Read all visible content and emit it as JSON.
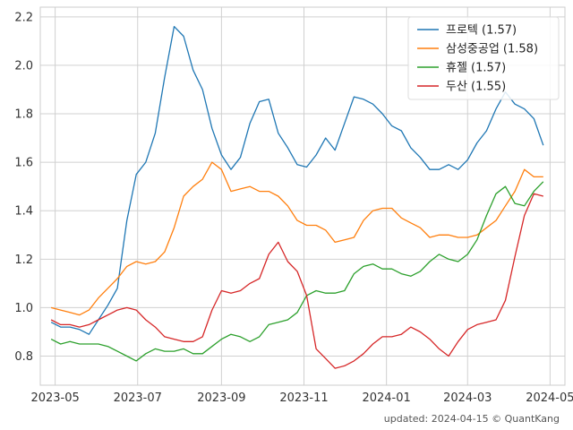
{
  "chart_data": {
    "type": "line",
    "title": "",
    "xlabel": "",
    "ylabel": "",
    "ylim": [
      0.68,
      2.24
    ],
    "xlim": [
      "2023-04-20",
      "2024-05-12"
    ],
    "grid": true,
    "legend_position": "top-right",
    "x_ticks": [
      "2023-05",
      "2023-07",
      "2023-09",
      "2023-11",
      "2024-01",
      "2024-03",
      "2024-05"
    ],
    "y_ticks": [
      "0.8",
      "1.0",
      "1.2",
      "1.4",
      "1.6",
      "1.8",
      "2.0",
      "2.2"
    ],
    "footer": "updated: 2024-04-15 © QuantKang",
    "series": [
      {
        "name": "프로텍 (1.57)",
        "color": "#1f77b4",
        "points": [
          [
            "2023-04-28",
            0.94
          ],
          [
            "2023-05-05",
            0.92
          ],
          [
            "2023-05-12",
            0.92
          ],
          [
            "2023-05-19",
            0.91
          ],
          [
            "2023-05-26",
            0.89
          ],
          [
            "2023-06-02",
            0.95
          ],
          [
            "2023-06-09",
            1.01
          ],
          [
            "2023-06-16",
            1.08
          ],
          [
            "2023-06-23",
            1.36
          ],
          [
            "2023-06-30",
            1.55
          ],
          [
            "2023-07-07",
            1.6
          ],
          [
            "2023-07-14",
            1.72
          ],
          [
            "2023-07-21",
            1.95
          ],
          [
            "2023-07-28",
            2.16
          ],
          [
            "2023-08-04",
            2.12
          ],
          [
            "2023-08-11",
            1.98
          ],
          [
            "2023-08-18",
            1.9
          ],
          [
            "2023-08-25",
            1.74
          ],
          [
            "2023-09-01",
            1.63
          ],
          [
            "2023-09-08",
            1.57
          ],
          [
            "2023-09-15",
            1.62
          ],
          [
            "2023-09-22",
            1.76
          ],
          [
            "2023-09-29",
            1.85
          ],
          [
            "2023-10-06",
            1.86
          ],
          [
            "2023-10-13",
            1.72
          ],
          [
            "2023-10-20",
            1.66
          ],
          [
            "2023-10-27",
            1.59
          ],
          [
            "2023-11-03",
            1.58
          ],
          [
            "2023-11-10",
            1.63
          ],
          [
            "2023-11-17",
            1.7
          ],
          [
            "2023-11-24",
            1.65
          ],
          [
            "2023-12-01",
            1.76
          ],
          [
            "2023-12-08",
            1.87
          ],
          [
            "2023-12-15",
            1.86
          ],
          [
            "2023-12-22",
            1.84
          ],
          [
            "2023-12-29",
            1.8
          ],
          [
            "2024-01-05",
            1.75
          ],
          [
            "2024-01-12",
            1.73
          ],
          [
            "2024-01-19",
            1.66
          ],
          [
            "2024-01-26",
            1.62
          ],
          [
            "2024-02-02",
            1.57
          ],
          [
            "2024-02-09",
            1.57
          ],
          [
            "2024-02-16",
            1.59
          ],
          [
            "2024-02-23",
            1.57
          ],
          [
            "2024-03-01",
            1.61
          ],
          [
            "2024-03-08",
            1.68
          ],
          [
            "2024-03-15",
            1.73
          ],
          [
            "2024-03-22",
            1.82
          ],
          [
            "2024-03-29",
            1.89
          ],
          [
            "2024-04-05",
            1.84
          ],
          [
            "2024-04-12",
            1.82
          ],
          [
            "2024-04-19",
            1.78
          ],
          [
            "2024-04-26",
            1.67
          ]
        ]
      },
      {
        "name": "삼성중공업 (1.58)",
        "color": "#ff7f0e",
        "points": [
          [
            "2023-04-28",
            1.0
          ],
          [
            "2023-05-05",
            0.99
          ],
          [
            "2023-05-12",
            0.98
          ],
          [
            "2023-05-19",
            0.97
          ],
          [
            "2023-05-26",
            0.99
          ],
          [
            "2023-06-02",
            1.04
          ],
          [
            "2023-06-09",
            1.08
          ],
          [
            "2023-06-16",
            1.12
          ],
          [
            "2023-06-23",
            1.17
          ],
          [
            "2023-06-30",
            1.19
          ],
          [
            "2023-07-07",
            1.18
          ],
          [
            "2023-07-14",
            1.19
          ],
          [
            "2023-07-21",
            1.23
          ],
          [
            "2023-07-28",
            1.33
          ],
          [
            "2023-08-04",
            1.46
          ],
          [
            "2023-08-11",
            1.5
          ],
          [
            "2023-08-18",
            1.53
          ],
          [
            "2023-08-25",
            1.6
          ],
          [
            "2023-09-01",
            1.57
          ],
          [
            "2023-09-08",
            1.48
          ],
          [
            "2023-09-15",
            1.49
          ],
          [
            "2023-09-22",
            1.5
          ],
          [
            "2023-09-29",
            1.48
          ],
          [
            "2023-10-06",
            1.48
          ],
          [
            "2023-10-13",
            1.46
          ],
          [
            "2023-10-20",
            1.42
          ],
          [
            "2023-10-27",
            1.36
          ],
          [
            "2023-11-03",
            1.34
          ],
          [
            "2023-11-10",
            1.34
          ],
          [
            "2023-11-17",
            1.32
          ],
          [
            "2023-11-24",
            1.27
          ],
          [
            "2023-12-01",
            1.28
          ],
          [
            "2023-12-08",
            1.29
          ],
          [
            "2023-12-15",
            1.36
          ],
          [
            "2023-12-22",
            1.4
          ],
          [
            "2023-12-29",
            1.41
          ],
          [
            "2024-01-05",
            1.41
          ],
          [
            "2024-01-12",
            1.37
          ],
          [
            "2024-01-19",
            1.35
          ],
          [
            "2024-01-26",
            1.33
          ],
          [
            "2024-02-02",
            1.29
          ],
          [
            "2024-02-09",
            1.3
          ],
          [
            "2024-02-16",
            1.3
          ],
          [
            "2024-02-23",
            1.29
          ],
          [
            "2024-03-01",
            1.29
          ],
          [
            "2024-03-08",
            1.3
          ],
          [
            "2024-03-15",
            1.33
          ],
          [
            "2024-03-22",
            1.36
          ],
          [
            "2024-03-29",
            1.42
          ],
          [
            "2024-04-05",
            1.48
          ],
          [
            "2024-04-12",
            1.57
          ],
          [
            "2024-04-19",
            1.54
          ],
          [
            "2024-04-26",
            1.54
          ]
        ]
      },
      {
        "name": "휴젤 (1.57)",
        "color": "#2ca02c",
        "points": [
          [
            "2023-04-28",
            0.87
          ],
          [
            "2023-05-05",
            0.85
          ],
          [
            "2023-05-12",
            0.86
          ],
          [
            "2023-05-19",
            0.85
          ],
          [
            "2023-05-26",
            0.85
          ],
          [
            "2023-06-02",
            0.85
          ],
          [
            "2023-06-09",
            0.84
          ],
          [
            "2023-06-16",
            0.82
          ],
          [
            "2023-06-23",
            0.8
          ],
          [
            "2023-06-30",
            0.78
          ],
          [
            "2023-07-07",
            0.81
          ],
          [
            "2023-07-14",
            0.83
          ],
          [
            "2023-07-21",
            0.82
          ],
          [
            "2023-07-28",
            0.82
          ],
          [
            "2023-08-04",
            0.83
          ],
          [
            "2023-08-11",
            0.81
          ],
          [
            "2023-08-18",
            0.81
          ],
          [
            "2023-08-25",
            0.84
          ],
          [
            "2023-09-01",
            0.87
          ],
          [
            "2023-09-08",
            0.89
          ],
          [
            "2023-09-15",
            0.88
          ],
          [
            "2023-09-22",
            0.86
          ],
          [
            "2023-09-29",
            0.88
          ],
          [
            "2023-10-06",
            0.93
          ],
          [
            "2023-10-13",
            0.94
          ],
          [
            "2023-10-20",
            0.95
          ],
          [
            "2023-10-27",
            0.98
          ],
          [
            "2023-11-03",
            1.05
          ],
          [
            "2023-11-10",
            1.07
          ],
          [
            "2023-11-17",
            1.06
          ],
          [
            "2023-11-24",
            1.06
          ],
          [
            "2023-12-01",
            1.07
          ],
          [
            "2023-12-08",
            1.14
          ],
          [
            "2023-12-15",
            1.17
          ],
          [
            "2023-12-22",
            1.18
          ],
          [
            "2023-12-29",
            1.16
          ],
          [
            "2024-01-05",
            1.16
          ],
          [
            "2024-01-12",
            1.14
          ],
          [
            "2024-01-19",
            1.13
          ],
          [
            "2024-01-26",
            1.15
          ],
          [
            "2024-02-02",
            1.19
          ],
          [
            "2024-02-09",
            1.22
          ],
          [
            "2024-02-16",
            1.2
          ],
          [
            "2024-02-23",
            1.19
          ],
          [
            "2024-03-01",
            1.22
          ],
          [
            "2024-03-08",
            1.28
          ],
          [
            "2024-03-15",
            1.38
          ],
          [
            "2024-03-22",
            1.47
          ],
          [
            "2024-03-29",
            1.5
          ],
          [
            "2024-04-05",
            1.43
          ],
          [
            "2024-04-12",
            1.42
          ],
          [
            "2024-04-19",
            1.48
          ],
          [
            "2024-04-26",
            1.52
          ]
        ]
      },
      {
        "name": "두산 (1.55)",
        "color": "#d62728",
        "points": [
          [
            "2023-04-28",
            0.95
          ],
          [
            "2023-05-05",
            0.93
          ],
          [
            "2023-05-12",
            0.93
          ],
          [
            "2023-05-19",
            0.92
          ],
          [
            "2023-05-26",
            0.93
          ],
          [
            "2023-06-02",
            0.95
          ],
          [
            "2023-06-09",
            0.97
          ],
          [
            "2023-06-16",
            0.99
          ],
          [
            "2023-06-23",
            1.0
          ],
          [
            "2023-06-30",
            0.99
          ],
          [
            "2023-07-07",
            0.95
          ],
          [
            "2023-07-14",
            0.92
          ],
          [
            "2023-07-21",
            0.88
          ],
          [
            "2023-07-28",
            0.87
          ],
          [
            "2023-08-04",
            0.86
          ],
          [
            "2023-08-11",
            0.86
          ],
          [
            "2023-08-18",
            0.88
          ],
          [
            "2023-08-25",
            0.99
          ],
          [
            "2023-09-01",
            1.07
          ],
          [
            "2023-09-08",
            1.06
          ],
          [
            "2023-09-15",
            1.07
          ],
          [
            "2023-09-22",
            1.1
          ],
          [
            "2023-09-29",
            1.12
          ],
          [
            "2023-10-06",
            1.22
          ],
          [
            "2023-10-13",
            1.27
          ],
          [
            "2023-10-20",
            1.19
          ],
          [
            "2023-10-27",
            1.15
          ],
          [
            "2023-11-03",
            1.05
          ],
          [
            "2023-11-10",
            0.83
          ],
          [
            "2023-11-17",
            0.79
          ],
          [
            "2023-11-24",
            0.75
          ],
          [
            "2023-12-01",
            0.76
          ],
          [
            "2023-12-08",
            0.78
          ],
          [
            "2023-12-15",
            0.81
          ],
          [
            "2023-12-22",
            0.85
          ],
          [
            "2023-12-29",
            0.88
          ],
          [
            "2024-01-05",
            0.88
          ],
          [
            "2024-01-12",
            0.89
          ],
          [
            "2024-01-19",
            0.92
          ],
          [
            "2024-01-26",
            0.9
          ],
          [
            "2024-02-02",
            0.87
          ],
          [
            "2024-02-09",
            0.83
          ],
          [
            "2024-02-16",
            0.8
          ],
          [
            "2024-02-23",
            0.86
          ],
          [
            "2024-03-01",
            0.91
          ],
          [
            "2024-03-08",
            0.93
          ],
          [
            "2024-03-15",
            0.94
          ],
          [
            "2024-03-22",
            0.95
          ],
          [
            "2024-03-29",
            1.03
          ],
          [
            "2024-04-05",
            1.21
          ],
          [
            "2024-04-12",
            1.38
          ],
          [
            "2024-04-19",
            1.47
          ],
          [
            "2024-04-26",
            1.46
          ]
        ]
      }
    ]
  }
}
